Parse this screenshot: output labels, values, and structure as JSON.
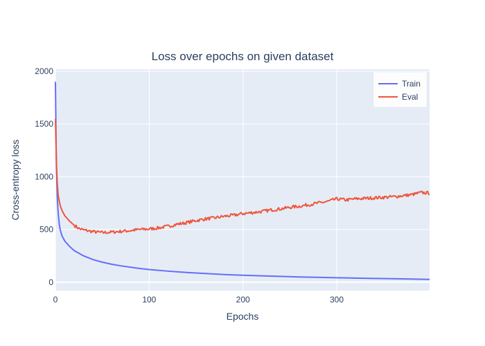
{
  "chart_data": {
    "type": "line",
    "title": "Loss over epochs on given dataset",
    "xlabel": "Epochs",
    "ylabel": "Cross-entropy loss",
    "xlim": [
      0,
      399
    ],
    "ylim": [
      -80,
      2020
    ],
    "x_ticks": [
      0,
      100,
      200,
      300
    ],
    "y_ticks": [
      0,
      500,
      1000,
      1500,
      2000
    ],
    "grid": true,
    "legend_position": "top-right",
    "colors": {
      "plot_bg": "#e5ecf6",
      "grid": "#ffffff",
      "text": "#2a3f5f"
    },
    "series": [
      {
        "name": "Train",
        "color": "#636efa",
        "x": [
          0,
          1,
          2,
          3,
          4,
          5,
          7,
          10,
          15,
          20,
          30,
          40,
          50,
          60,
          70,
          80,
          90,
          100,
          120,
          140,
          160,
          180,
          200,
          220,
          240,
          260,
          280,
          300,
          320,
          340,
          360,
          380,
          399
        ],
        "y": [
          1900,
          1100,
          800,
          650,
          560,
          500,
          440,
          390,
          340,
          300,
          250,
          215,
          190,
          170,
          155,
          142,
          130,
          120,
          105,
          92,
          82,
          73,
          66,
          60,
          55,
          50,
          46,
          42,
          39,
          36,
          33,
          30,
          27
        ]
      },
      {
        "name": "Eval",
        "color": "#ef553b",
        "x": [
          0,
          1,
          2,
          3,
          5,
          7,
          10,
          15,
          20,
          25,
          30,
          40,
          50,
          60,
          70,
          80,
          90,
          100,
          110,
          120,
          130,
          140,
          150,
          160,
          170,
          180,
          190,
          200,
          210,
          220,
          230,
          240,
          250,
          260,
          270,
          280,
          290,
          300,
          310,
          320,
          330,
          340,
          350,
          360,
          370,
          380,
          390,
          399
        ],
        "y": [
          1550,
          1150,
          930,
          820,
          730,
          680,
          630,
          580,
          540,
          510,
          495,
          480,
          470,
          475,
          482,
          490,
          500,
          505,
          515,
          530,
          550,
          565,
          585,
          600,
          610,
          625,
          635,
          650,
          660,
          670,
          685,
          695,
          710,
          720,
          735,
          750,
          765,
          790,
          780,
          790,
          795,
          800,
          805,
          810,
          820,
          830,
          850,
          845
        ]
      }
    ]
  }
}
